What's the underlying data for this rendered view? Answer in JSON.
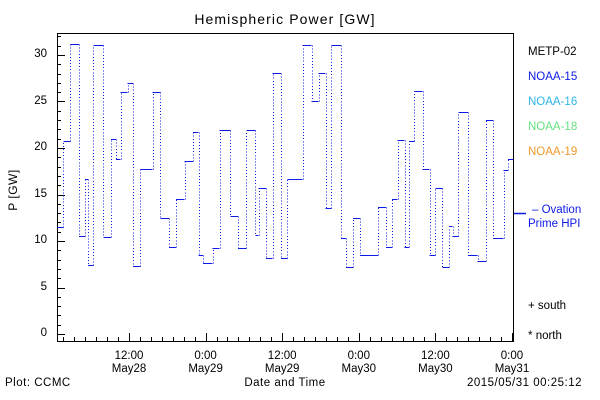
{
  "window": {
    "background": "#ffffff",
    "foreground": "#000000"
  },
  "title": "Hemispheric Power [GW]",
  "y_axis": {
    "label": "P [GW]",
    "ticks": [
      {
        "v": 0,
        "label": "0"
      },
      {
        "v": 5,
        "label": "5"
      },
      {
        "v": 10,
        "label": "10"
      },
      {
        "v": 15,
        "label": "15"
      },
      {
        "v": 20,
        "label": "20"
      },
      {
        "v": 25,
        "label": "25"
      },
      {
        "v": 30,
        "label": "30"
      }
    ]
  },
  "x_axis": {
    "label": "Date and Time",
    "ticks": [
      {
        "hours": 12,
        "time": "12:00",
        "date": "May28"
      },
      {
        "hours": 24,
        "time": "0:00",
        "date": "May29"
      },
      {
        "hours": 36,
        "time": "12:00",
        "date": "May29"
      },
      {
        "hours": 48,
        "time": "0:00",
        "date": "May30"
      },
      {
        "hours": 60,
        "time": "12:00",
        "date": "May30"
      },
      {
        "hours": 72,
        "time": "0:00",
        "date": "May31"
      }
    ]
  },
  "legend": {
    "satellites": [
      {
        "label": "METP-02",
        "color": "#000000"
      },
      {
        "label": "NOAA-15",
        "color": "#0d1ae6"
      },
      {
        "label": "NOAA-16",
        "color": "#2eb6e8"
      },
      {
        "label": "NOAA-18",
        "color": "#68e080"
      },
      {
        "label": "NOAA-19",
        "color": "#f0992d"
      }
    ],
    "ovation": {
      "line1": "– Ovation",
      "line2": "Prime HPI",
      "color": "#0d1ae6"
    },
    "markers": [
      {
        "symbol": "+",
        "label": "south"
      },
      {
        "symbol": "*",
        "label": "north"
      }
    ]
  },
  "footer": {
    "left": "Plot: CCMC",
    "right": "2015/05/31 00:25:12"
  },
  "chart_data": {
    "type": "line",
    "title": "Hemispheric Power [GW]",
    "xlabel": "Date and Time",
    "ylabel": "P [GW]",
    "ylim": [
      0,
      32.4
    ],
    "grid": false,
    "legend_position": "right",
    "x_reference": "hours since 2015-05-28 00:00",
    "x_start_hours": 0.72,
    "x_end_hours": 72.16,
    "x_major_tick_hours": [
      12,
      24,
      36,
      48,
      60,
      72
    ],
    "x_tick_labels": [
      "12:00 May28",
      "0:00 May29",
      "12:00 May29",
      "0:00 May30",
      "12:00 May30",
      "0:00 May31"
    ],
    "x_minor_divisions_per_major": 7,
    "y_major_ticks": [
      0,
      5,
      10,
      15,
      20,
      25,
      30
    ],
    "y_minor_step": 1,
    "line_style": "solid horizontal steps with dotted vertical connectors",
    "series": [
      {
        "name": "NOAA-15 Ovation Prime HPI",
        "color": "#0d1ae6",
        "units": "GW",
        "segments_hours_gw": [
          [
            0.7,
            11.5
          ],
          [
            1.7,
            20.8
          ],
          [
            2.8,
            31.2
          ],
          [
            4.2,
            10.5
          ],
          [
            5.1,
            16.7
          ],
          [
            5.6,
            7.4
          ],
          [
            6.4,
            31.1
          ],
          [
            8.0,
            10.4
          ],
          [
            9.2,
            21.0
          ],
          [
            10.0,
            18.8
          ],
          [
            10.7,
            26.0
          ],
          [
            11.8,
            27.0
          ],
          [
            12.6,
            7.3
          ],
          [
            13.8,
            17.7
          ],
          [
            15.7,
            26.0
          ],
          [
            16.9,
            12.5
          ],
          [
            18.3,
            9.4
          ],
          [
            19.4,
            14.5
          ],
          [
            20.7,
            18.6
          ],
          [
            22.0,
            21.7
          ],
          [
            22.9,
            8.5
          ],
          [
            23.6,
            7.6
          ],
          [
            25.1,
            9.3
          ],
          [
            26.2,
            21.9
          ],
          [
            27.9,
            12.7
          ],
          [
            29.1,
            9.3
          ],
          [
            30.4,
            21.9
          ],
          [
            31.8,
            10.6
          ],
          [
            32.3,
            15.7
          ],
          [
            33.5,
            8.2
          ],
          [
            34.5,
            28.1
          ],
          [
            35.8,
            8.2
          ],
          [
            36.8,
            16.7
          ],
          [
            39.2,
            31.1
          ],
          [
            40.6,
            25.0
          ],
          [
            41.7,
            28.1
          ],
          [
            42.8,
            13.6
          ],
          [
            43.7,
            31.1
          ],
          [
            45.2,
            10.3
          ],
          [
            46.0,
            7.2
          ],
          [
            47.1,
            12.5
          ],
          [
            48.2,
            8.5
          ],
          [
            51.0,
            13.7
          ],
          [
            52.3,
            9.4
          ],
          [
            53.2,
            14.5
          ],
          [
            54.1,
            20.9
          ],
          [
            55.2,
            9.4
          ],
          [
            55.9,
            20.8
          ],
          [
            56.7,
            26.1
          ],
          [
            58.0,
            17.7
          ],
          [
            59.1,
            8.5
          ],
          [
            60.0,
            15.7
          ],
          [
            61.1,
            7.2
          ],
          [
            62.1,
            11.6
          ],
          [
            62.7,
            10.5
          ],
          [
            63.6,
            23.9
          ],
          [
            65.1,
            8.5
          ],
          [
            66.6,
            7.8
          ],
          [
            67.9,
            23.0
          ],
          [
            69.0,
            10.3
          ],
          [
            70.7,
            17.6
          ],
          [
            71.4,
            18.8
          ]
        ]
      }
    ]
  }
}
